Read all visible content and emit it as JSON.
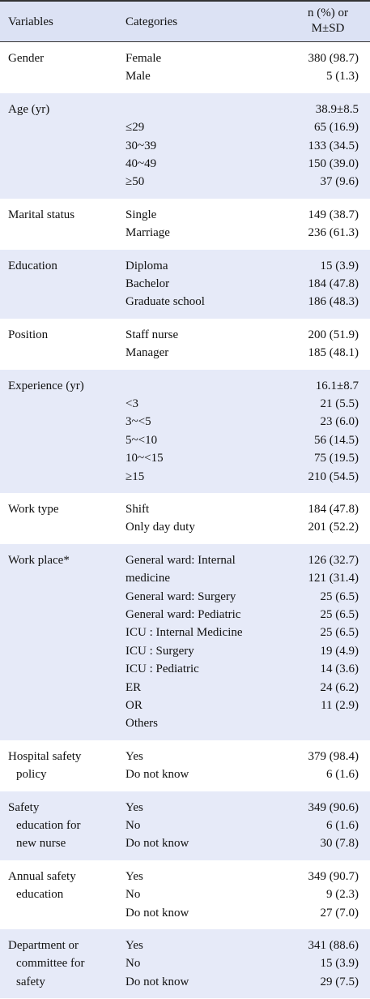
{
  "header": {
    "variables": "Variables",
    "categories": "Categories",
    "value": [
      "n (%) or",
      "M±SD"
    ]
  },
  "groups": [
    {
      "variable": [
        "Gender"
      ],
      "rows": [
        [
          "Female",
          "380 (98.7)"
        ],
        [
          "Male",
          "5 (1.3)"
        ]
      ]
    },
    {
      "variable": [
        "Age (yr)"
      ],
      "rows": [
        [
          null,
          "38.9±8.5"
        ],
        [
          "≤29",
          "65 (16.9)"
        ],
        [
          "30~39",
          "133 (34.5)"
        ],
        [
          "40~49",
          "150 (39.0)"
        ],
        [
          "≥50",
          "37 (9.6)"
        ]
      ]
    },
    {
      "variable": [
        "Marital status"
      ],
      "rows": [
        [
          "Single",
          "149 (38.7)"
        ],
        [
          "Marriage",
          "236 (61.3)"
        ]
      ]
    },
    {
      "variable": [
        "Education"
      ],
      "rows": [
        [
          "Diploma",
          "15 (3.9)"
        ],
        [
          "Bachelor",
          "184 (47.8)"
        ],
        [
          "Graduate school",
          "186 (48.3)"
        ]
      ]
    },
    {
      "variable": [
        "Position"
      ],
      "rows": [
        [
          "Staff nurse",
          "200 (51.9)"
        ],
        [
          "Manager",
          "185 (48.1)"
        ]
      ]
    },
    {
      "variable": [
        "Experience (yr)"
      ],
      "rows": [
        [
          null,
          "16.1±8.7"
        ],
        [
          "<3",
          "21 (5.5)"
        ],
        [
          "3~<5",
          "23 (6.0)"
        ],
        [
          "5~<10",
          "56 (14.5)"
        ],
        [
          "10~<15",
          "75 (19.5)"
        ],
        [
          "≥15",
          "210 (54.5)"
        ]
      ]
    },
    {
      "variable": [
        "Work type"
      ],
      "rows": [
        [
          "Shift",
          "184 (47.8)"
        ],
        [
          "Only day duty",
          "201 (52.2)"
        ]
      ]
    },
    {
      "variable": [
        "Work place*"
      ],
      "rows": [
        [
          "General ward: Internal",
          "126 (32.7)"
        ],
        [
          "medicine",
          "121 (31.4)"
        ],
        [
          "General ward: Surgery",
          "25 (6.5)"
        ],
        [
          "General ward: Pediatric",
          "25 (6.5)"
        ],
        [
          "ICU : Internal Medicine",
          "25 (6.5)"
        ],
        [
          "ICU : Surgery",
          "19 (4.9)"
        ],
        [
          "ICU : Pediatric",
          "14 (3.6)"
        ],
        [
          "ER",
          "24 (6.2)"
        ],
        [
          "OR",
          "11 (2.9)"
        ],
        [
          "Others",
          null
        ]
      ]
    },
    {
      "variable": [
        "Hospital safety",
        "policy"
      ],
      "rows": [
        [
          "Yes",
          "379 (98.4)"
        ],
        [
          "Do not know",
          "6 (1.6)"
        ]
      ]
    },
    {
      "variable": [
        "Safety",
        "education for",
        "new nurse"
      ],
      "rows": [
        [
          "Yes",
          "349 (90.6)"
        ],
        [
          "No",
          "6 (1.6)"
        ],
        [
          "Do not know",
          "30 (7.8)"
        ]
      ]
    },
    {
      "variable": [
        "Annual safety",
        "education"
      ],
      "rows": [
        [
          "Yes",
          "349 (90.7)"
        ],
        [
          "No",
          "9 (2.3)"
        ],
        [
          "Do not know",
          "27 (7.0)"
        ]
      ]
    },
    {
      "variable": [
        "Department or",
        "committee for",
        "safety"
      ],
      "rows": [
        [
          "Yes",
          "341 (88.6)"
        ],
        [
          "No",
          "15 (3.9)"
        ],
        [
          "Do not know",
          "29 (7.5)"
        ]
      ]
    }
  ]
}
